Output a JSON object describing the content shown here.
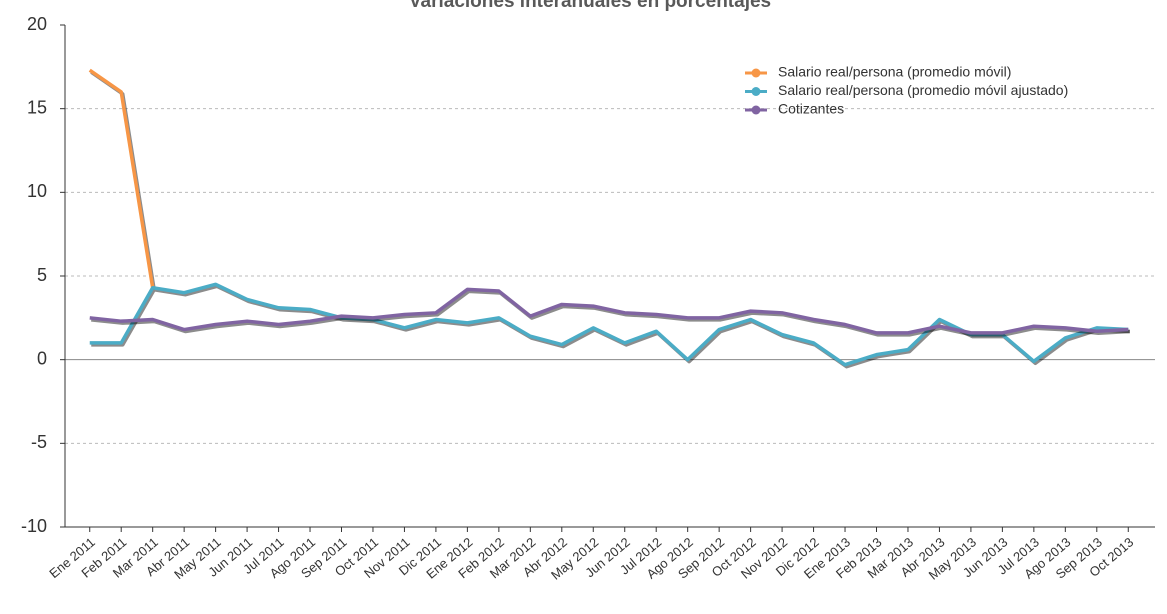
{
  "chart_data": {
    "type": "line",
    "title": "Variaciones interanuales en porcentajes",
    "categories": [
      "Ene 2011",
      "Feb 2011",
      "Mar 2011",
      "Abr 2011",
      "May 2011",
      "Jun 2011",
      "Jul 2011",
      "Ago 2011",
      "Sep 2011",
      "Oct 2011",
      "Nov 2011",
      "Dic 2011",
      "Ene 2012",
      "Feb 2012",
      "Mar 2012",
      "Abr 2012",
      "May 2012",
      "Jun 2012",
      "Jul 2012",
      "Ago 2012",
      "Sep 2012",
      "Oct 2012",
      "Nov 2012",
      "Dic 2012",
      "Ene 2013",
      "Feb 2013",
      "Mar 2013",
      "Abr 2013",
      "May 2013",
      "Jun 2013",
      "Jul 2013",
      "Ago 2013",
      "Sep 2013",
      "Oct 2013"
    ],
    "series": [
      {
        "name": "Salario real/persona (promedio móvil)",
        "color": "#f79646",
        "values": [
          17.3,
          16.0,
          4.3,
          null,
          null,
          null,
          null,
          null,
          null,
          null,
          null,
          null,
          null,
          null,
          null,
          null,
          null,
          null,
          null,
          null,
          null,
          null,
          null,
          null,
          null,
          null,
          null,
          null,
          null,
          null,
          null,
          null,
          null,
          null
        ]
      },
      {
        "name": "Salario real/persona (promedio móvil ajustado)",
        "color": "#4bacc6",
        "values": [
          1.0,
          1.0,
          4.3,
          4.0,
          4.5,
          3.6,
          3.1,
          3.0,
          2.5,
          2.4,
          1.9,
          2.4,
          2.2,
          2.5,
          1.4,
          0.9,
          1.9,
          1.0,
          1.7,
          0.0,
          1.8,
          2.4,
          1.5,
          1.0,
          -0.3,
          0.3,
          0.6,
          2.4,
          1.5,
          1.5,
          -0.1,
          1.3,
          1.9,
          1.8
        ]
      },
      {
        "name": "Cotizantes",
        "color": "#8064a2",
        "values": [
          2.5,
          2.3,
          2.4,
          1.8,
          2.1,
          2.3,
          2.1,
          2.3,
          2.6,
          2.5,
          2.7,
          2.8,
          4.2,
          4.1,
          2.6,
          3.3,
          3.2,
          2.8,
          2.7,
          2.5,
          2.5,
          2.9,
          2.8,
          2.4,
          2.1,
          1.6,
          1.6,
          2.0,
          1.6,
          1.6,
          2.0,
          1.9,
          1.7,
          1.8
        ]
      }
    ],
    "ylim": [
      -10,
      20
    ],
    "yticks": [
      -10,
      -5,
      0,
      5,
      10,
      15,
      20
    ],
    "grid": true
  }
}
